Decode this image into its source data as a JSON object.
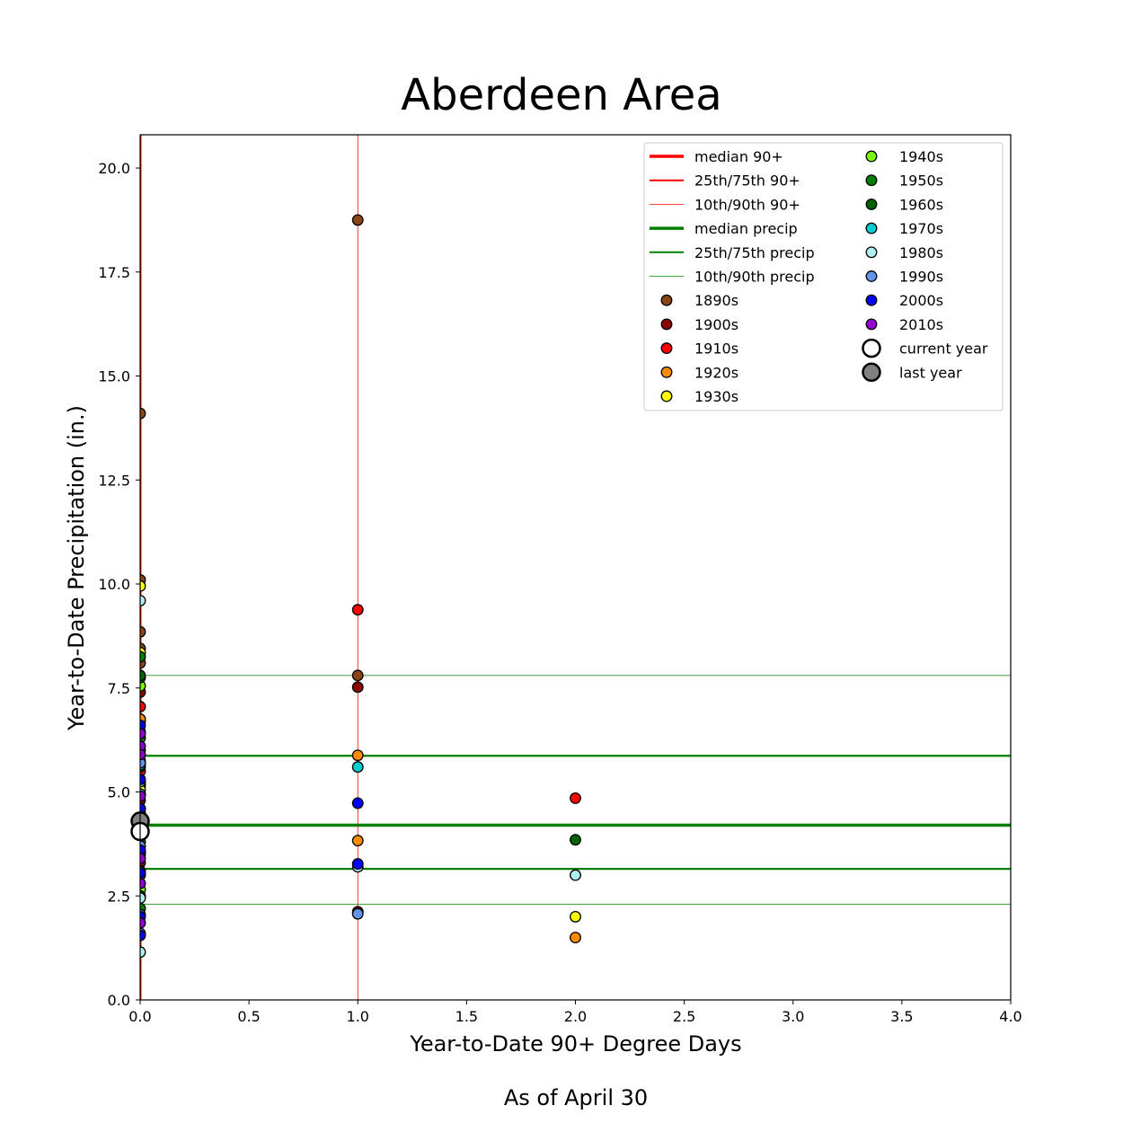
{
  "chart_data": {
    "type": "scatter",
    "title": "Aberdeen Area",
    "xlabel": "Year-to-Date 90+ Degree Days",
    "ylabel": "Year-to-Date Precipitation (in.)",
    "footnote": "As of April 30",
    "xlim": [
      0.0,
      4.0
    ],
    "ylim": [
      0.0,
      20.8
    ],
    "x_ticks": [
      "0.0",
      "0.5",
      "1.0",
      "1.5",
      "2.0",
      "2.5",
      "3.0",
      "3.5",
      "4.0"
    ],
    "y_ticks": [
      "0.0",
      "2.5",
      "5.0",
      "7.5",
      "10.0",
      "12.5",
      "15.0",
      "17.5",
      "20.0"
    ],
    "grid": false,
    "legend_placement": "top-right",
    "reference_lines": {
      "median_90": 0,
      "p25_p75_90": [
        0,
        0
      ],
      "p10_p90_90": [
        0,
        1
      ],
      "median_precip": 4.2,
      "p25_p75_precip": [
        3.15,
        5.87
      ],
      "p10_p90_precip": [
        2.3,
        7.8
      ]
    },
    "legend": [
      {
        "label": "median 90+",
        "kind": "line",
        "color": "#ff0000",
        "width": 3.5
      },
      {
        "label": "25th/75th 90+",
        "kind": "line",
        "color": "#ff0000",
        "width": 2
      },
      {
        "label": "10th/90th 90+",
        "kind": "line",
        "color": "#ff0000",
        "width": 0.8
      },
      {
        "label": "median precip",
        "kind": "line",
        "color": "#008000",
        "width": 3.5
      },
      {
        "label": "25th/75th precip",
        "kind": "line",
        "color": "#008000",
        "width": 2
      },
      {
        "label": "10th/90th precip",
        "kind": "line",
        "color": "#008000",
        "width": 0.8
      },
      {
        "label": "1890s",
        "kind": "marker",
        "color": "#8b4513"
      },
      {
        "label": "1900s",
        "kind": "marker",
        "color": "#8b0000"
      },
      {
        "label": "1910s",
        "kind": "marker",
        "color": "#ff0000"
      },
      {
        "label": "1920s",
        "kind": "marker",
        "color": "#ff8c00"
      },
      {
        "label": "1930s",
        "kind": "marker",
        "color": "#ffff00"
      },
      {
        "label": "1940s",
        "kind": "marker",
        "color": "#7cfc00"
      },
      {
        "label": "1950s",
        "kind": "marker",
        "color": "#008000"
      },
      {
        "label": "1960s",
        "kind": "marker",
        "color": "#006400"
      },
      {
        "label": "1970s",
        "kind": "marker",
        "color": "#00ced1"
      },
      {
        "label": "1980s",
        "kind": "marker",
        "color": "#afeeee"
      },
      {
        "label": "1990s",
        "kind": "marker",
        "color": "#6495ed"
      },
      {
        "label": "2000s",
        "kind": "marker",
        "color": "#0000ff"
      },
      {
        "label": "2010s",
        "kind": "marker",
        "color": "#9400d3"
      },
      {
        "label": "current year",
        "kind": "big-marker",
        "color": "#ffffff"
      },
      {
        "label": "last year",
        "kind": "big-marker",
        "color": "#808080"
      }
    ],
    "series": [
      {
        "decade": "1890s",
        "color": "#8b4513",
        "points": [
          [
            0,
            14.1
          ],
          [
            0,
            10.1
          ],
          [
            0,
            8.85
          ],
          [
            0,
            8.45
          ],
          [
            0,
            8.1
          ],
          [
            0,
            5.75
          ],
          [
            1,
            18.75
          ],
          [
            1,
            7.8
          ]
        ]
      },
      {
        "decade": "1900s",
        "color": "#8b0000",
        "points": [
          [
            0,
            7.4
          ],
          [
            0,
            5.2
          ],
          [
            0,
            4.8
          ],
          [
            0,
            3.3
          ],
          [
            1,
            7.52
          ],
          [
            1,
            2.12
          ]
        ]
      },
      {
        "decade": "1910s",
        "color": "#ff0000",
        "points": [
          [
            0,
            7.05
          ],
          [
            0,
            6.7
          ],
          [
            0,
            5.5
          ],
          [
            1,
            9.38
          ],
          [
            2,
            4.85
          ]
        ]
      },
      {
        "decade": "1920s",
        "color": "#ff8c00",
        "points": [
          [
            0,
            6.75
          ],
          [
            0,
            5.15
          ],
          [
            0,
            4.6
          ],
          [
            0,
            3.5
          ],
          [
            1,
            5.88
          ],
          [
            1,
            3.83
          ],
          [
            2,
            1.5
          ]
        ]
      },
      {
        "decade": "1930s",
        "color": "#ffff00",
        "points": [
          [
            0,
            9.95
          ],
          [
            0,
            8.35
          ],
          [
            0,
            5.05
          ],
          [
            0,
            3.0
          ],
          [
            2,
            2.0
          ]
        ]
      },
      {
        "decade": "1940s",
        "color": "#7cfc00",
        "points": [
          [
            0,
            7.55
          ],
          [
            0,
            6.0
          ],
          [
            0,
            4.5
          ],
          [
            0,
            2.65
          ]
        ]
      },
      {
        "decade": "1950s",
        "color": "#008000",
        "points": [
          [
            0,
            8.25
          ],
          [
            0,
            7.75
          ],
          [
            0,
            6.3
          ],
          [
            0,
            3.8
          ],
          [
            0,
            2.2
          ]
        ]
      },
      {
        "decade": "1960s",
        "color": "#006400",
        "points": [
          [
            0,
            7.8
          ],
          [
            0,
            5.6
          ],
          [
            0,
            3.1
          ],
          [
            0,
            2.5
          ],
          [
            2,
            3.85
          ]
        ]
      },
      {
        "decade": "1970s",
        "color": "#00ced1",
        "points": [
          [
            0,
            5.65
          ],
          [
            0,
            4.95
          ],
          [
            0,
            3.55
          ],
          [
            1,
            5.6
          ]
        ]
      },
      {
        "decade": "1980s",
        "color": "#afeeee",
        "points": [
          [
            0,
            9.6
          ],
          [
            0,
            5.25
          ],
          [
            0,
            2.45
          ],
          [
            0,
            1.15
          ],
          [
            1,
            3.2
          ],
          [
            2,
            3.0
          ]
        ]
      },
      {
        "decade": "1990s",
        "color": "#6495ed",
        "points": [
          [
            0,
            6.45
          ],
          [
            0,
            5.7
          ],
          [
            0,
            3.7
          ],
          [
            0,
            2.05
          ],
          [
            0,
            1.6
          ],
          [
            1,
            2.07
          ]
        ]
      },
      {
        "decade": "2000s",
        "color": "#0000ff",
        "points": [
          [
            0,
            6.6
          ],
          [
            0,
            5.3
          ],
          [
            0,
            4.6
          ],
          [
            0,
            3.6
          ],
          [
            0,
            3.05
          ],
          [
            0,
            2.0
          ],
          [
            0,
            1.55
          ],
          [
            1,
            4.73
          ],
          [
            1,
            3.27
          ]
        ]
      },
      {
        "decade": "2010s",
        "color": "#9400d3",
        "points": [
          [
            0,
            6.4
          ],
          [
            0,
            6.1
          ],
          [
            0,
            5.9
          ],
          [
            0,
            4.9
          ],
          [
            0,
            3.4
          ],
          [
            0,
            2.8
          ],
          [
            0,
            1.85
          ]
        ]
      }
    ],
    "current_year": [
      0,
      4.05
    ],
    "last_year": [
      0,
      4.3
    ]
  }
}
